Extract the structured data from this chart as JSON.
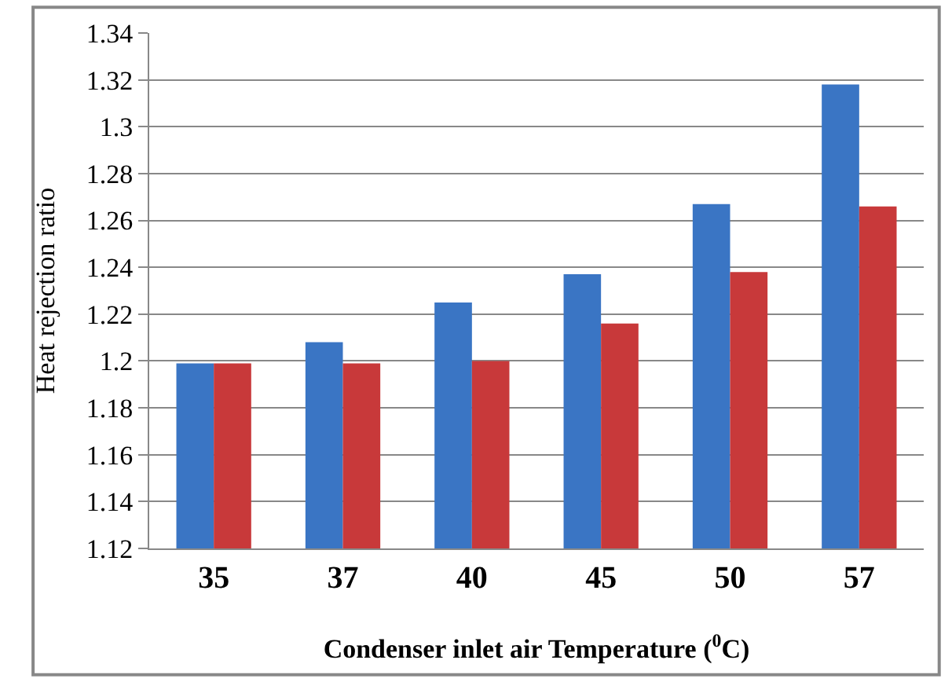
{
  "chart_data": {
    "type": "bar",
    "xlabel": "Condenser inlet air Temperature ($^{0}$C)",
    "ylabel": "Heat rejection ratio",
    "categories": [
      "35",
      "37",
      "40",
      "45",
      "50",
      "57"
    ],
    "series": [
      {
        "color": "#3a75c4",
        "values": [
          1.199,
          1.208,
          1.225,
          1.237,
          1.267,
          1.318
        ]
      },
      {
        "color": "#c8393a",
        "values": [
          1.199,
          1.199,
          1.2,
          1.216,
          1.238,
          1.266
        ]
      }
    ],
    "ylim": [
      1.12,
      1.34
    ],
    "yticks": [
      1.12,
      1.14,
      1.16,
      1.18,
      {
        "value": 1.2,
        "label": "1.2"
      },
      1.22,
      1.24,
      1.26,
      1.28,
      {
        "value": 1.3,
        "label": "1.3"
      },
      1.32,
      1.34
    ],
    "grid": "y"
  }
}
